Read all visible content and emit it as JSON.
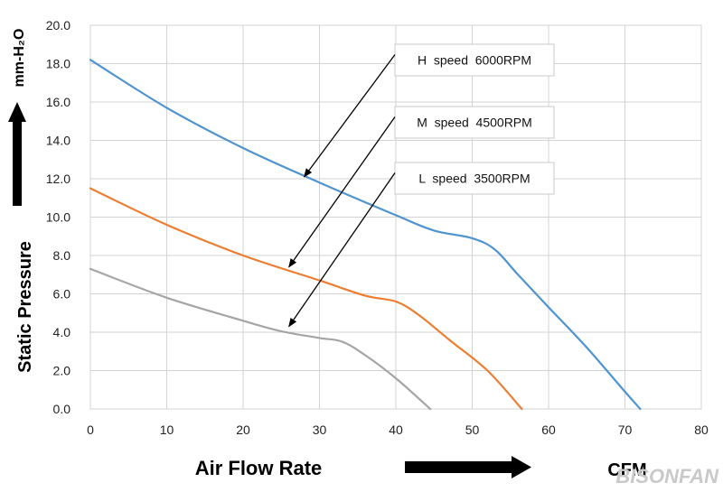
{
  "chart_data": {
    "type": "line",
    "x_axis": {
      "label": "Air  Flow  Rate",
      "unit": "CFM",
      "range": [
        0,
        80
      ],
      "ticks": [
        "0",
        "10",
        "20",
        "30",
        "40",
        "50",
        "60",
        "70",
        "80"
      ]
    },
    "y_axis": {
      "label": "Static  Pressure",
      "unit": "mm-H₂O",
      "range": [
        0,
        20
      ],
      "ticks": [
        "0.0",
        "2.0",
        "4.0",
        "6.0",
        "8.0",
        "10.0",
        "12.0",
        "14.0",
        "16.0",
        "18.0",
        "20.0"
      ]
    },
    "grid": true,
    "series": [
      {
        "name": "H  speed  6000RPM",
        "color": "#4f94cf",
        "points": [
          [
            0,
            18.2
          ],
          [
            10,
            15.7
          ],
          [
            20,
            13.6
          ],
          [
            30,
            11.8
          ],
          [
            40,
            10.1
          ],
          [
            45,
            9.3
          ],
          [
            50,
            8.9
          ],
          [
            53,
            8.3
          ],
          [
            56,
            7.0
          ],
          [
            60,
            5.3
          ],
          [
            65,
            3.2
          ],
          [
            70,
            0.9
          ],
          [
            72,
            0.0
          ]
        ]
      },
      {
        "name": "M  speed  4500RPM",
        "color": "#ed7d31",
        "points": [
          [
            0,
            11.5
          ],
          [
            10,
            9.6
          ],
          [
            20,
            8.0
          ],
          [
            30,
            6.7
          ],
          [
            36,
            5.9
          ],
          [
            40,
            5.6
          ],
          [
            43,
            4.9
          ],
          [
            47,
            3.6
          ],
          [
            52,
            2.0
          ],
          [
            56.5,
            0.0
          ]
        ]
      },
      {
        "name": "L  speed  3500RPM",
        "color": "#a5a5a5",
        "points": [
          [
            0,
            7.3
          ],
          [
            10,
            5.8
          ],
          [
            20,
            4.6
          ],
          [
            25,
            4.05
          ],
          [
            30,
            3.7
          ],
          [
            33,
            3.5
          ],
          [
            36,
            2.8
          ],
          [
            40,
            1.6
          ],
          [
            44.5,
            0.0
          ]
        ]
      }
    ],
    "annotations": [
      {
        "text": "H  speed  6000RPM",
        "series": 0,
        "arrow_to": [
          28,
          12.1
        ]
      },
      {
        "text": "M  speed  4500RPM",
        "series": 1,
        "arrow_to": [
          26,
          7.4
        ]
      },
      {
        "text": "L  speed  3500RPM",
        "series": 2,
        "arrow_to": [
          26,
          4.3
        ]
      }
    ],
    "watermark": "BISONFAN"
  }
}
